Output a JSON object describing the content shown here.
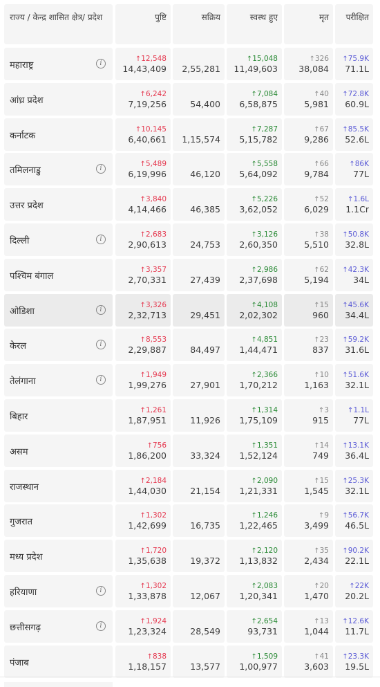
{
  "headers": {
    "state": "राज्य / केन्द्र शासित क्षेत्र/ प्रदेश",
    "confirmed": "पुष्टि",
    "active": "सक्रिय",
    "recovered": "स्वस्थ हुए",
    "deceased": "मृत",
    "tested": "परीक्षित"
  },
  "icons": {
    "arrow_up": "↑",
    "info": "i"
  },
  "colors": {
    "confirmed_delta": "#e53950",
    "recovered_delta": "#2a8a36",
    "deceased_delta": "#888888",
    "tested_delta": "#5a5ad6"
  },
  "rows": [
    {
      "state": "महाराष्ट्र",
      "info": true,
      "confirmed_delta": "12,548",
      "confirmed": "14,43,409",
      "active": "2,55,281",
      "recovered_delta": "15,048",
      "recovered": "11,49,603",
      "deceased_delta": "326",
      "deceased": "38,084",
      "tested_delta": "75.9K",
      "tested": "71.1L"
    },
    {
      "state": "आंध्र प्रदेश",
      "info": false,
      "confirmed_delta": "6,242",
      "confirmed": "7,19,256",
      "active": "54,400",
      "recovered_delta": "7,084",
      "recovered": "6,58,875",
      "deceased_delta": "40",
      "deceased": "5,981",
      "tested_delta": "72.8K",
      "tested": "60.9L"
    },
    {
      "state": "कर्नाटक",
      "info": false,
      "confirmed_delta": "10,145",
      "confirmed": "6,40,661",
      "active": "1,15,574",
      "recovered_delta": "7,287",
      "recovered": "5,15,782",
      "deceased_delta": "67",
      "deceased": "9,286",
      "tested_delta": "85.5K",
      "tested": "52.6L"
    },
    {
      "state": "तमिलनाडु",
      "info": true,
      "confirmed_delta": "5,489",
      "confirmed": "6,19,996",
      "active": "46,120",
      "recovered_delta": "5,558",
      "recovered": "5,64,092",
      "deceased_delta": "66",
      "deceased": "9,784",
      "tested_delta": "86K",
      "tested": "77L"
    },
    {
      "state": "उत्तर प्रदेश",
      "info": false,
      "confirmed_delta": "3,840",
      "confirmed": "4,14,466",
      "active": "46,385",
      "recovered_delta": "5,226",
      "recovered": "3,62,052",
      "deceased_delta": "52",
      "deceased": "6,029",
      "tested_delta": "1.6L",
      "tested": "1.1Cr"
    },
    {
      "state": "दिल्ली",
      "info": true,
      "confirmed_delta": "2,683",
      "confirmed": "2,90,613",
      "active": "24,753",
      "recovered_delta": "3,126",
      "recovered": "2,60,350",
      "deceased_delta": "38",
      "deceased": "5,510",
      "tested_delta": "50.8K",
      "tested": "32.8L"
    },
    {
      "state": "पश्चिम बंगाल",
      "info": false,
      "confirmed_delta": "3,357",
      "confirmed": "2,70,331",
      "active": "27,439",
      "recovered_delta": "2,986",
      "recovered": "2,37,698",
      "deceased_delta": "62",
      "deceased": "5,194",
      "tested_delta": "42.3K",
      "tested": "34L"
    },
    {
      "state": "ओडिशा",
      "info": true,
      "highlight": true,
      "confirmed_delta": "3,326",
      "confirmed": "2,32,713",
      "active": "29,451",
      "recovered_delta": "4,108",
      "recovered": "2,02,302",
      "deceased_delta": "15",
      "deceased": "960",
      "tested_delta": "45.6K",
      "tested": "34.4L"
    },
    {
      "state": "केरल",
      "info": true,
      "confirmed_delta": "8,553",
      "confirmed": "2,29,887",
      "active": "84,497",
      "recovered_delta": "4,851",
      "recovered": "1,44,471",
      "deceased_delta": "23",
      "deceased": "837",
      "tested_delta": "59.2K",
      "tested": "31.6L"
    },
    {
      "state": "तेलंगाना",
      "info": true,
      "confirmed_delta": "1,949",
      "confirmed": "1,99,276",
      "active": "27,901",
      "recovered_delta": "2,366",
      "recovered": "1,70,212",
      "deceased_delta": "10",
      "deceased": "1,163",
      "tested_delta": "51.6K",
      "tested": "32.1L"
    },
    {
      "state": "बिहार",
      "info": false,
      "confirmed_delta": "1,261",
      "confirmed": "1,87,951",
      "active": "11,926",
      "recovered_delta": "1,314",
      "recovered": "1,75,109",
      "deceased_delta": "3",
      "deceased": "915",
      "tested_delta": "1.1L",
      "tested": "77L"
    },
    {
      "state": "असम",
      "info": false,
      "confirmed_delta": "756",
      "confirmed": "1,86,200",
      "active": "33,324",
      "recovered_delta": "1,351",
      "recovered": "1,52,124",
      "deceased_delta": "14",
      "deceased": "749",
      "tested_delta": "13.1K",
      "tested": "36.4L"
    },
    {
      "state": "राजस्थान",
      "info": false,
      "confirmed_delta": "2,184",
      "confirmed": "1,44,030",
      "active": "21,154",
      "recovered_delta": "2,090",
      "recovered": "1,21,331",
      "deceased_delta": "15",
      "deceased": "1,545",
      "tested_delta": "25.3K",
      "tested": "32.1L"
    },
    {
      "state": "गुजरात",
      "info": false,
      "confirmed_delta": "1,302",
      "confirmed": "1,42,699",
      "active": "16,735",
      "recovered_delta": "1,246",
      "recovered": "1,22,465",
      "deceased_delta": "9",
      "deceased": "3,499",
      "tested_delta": "56.7K",
      "tested": "46.5L"
    },
    {
      "state": "मध्य प्रदेश",
      "info": false,
      "confirmed_delta": "1,720",
      "confirmed": "1,35,638",
      "active": "19,372",
      "recovered_delta": "2,120",
      "recovered": "1,13,832",
      "deceased_delta": "35",
      "deceased": "2,434",
      "tested_delta": "90.2K",
      "tested": "22.1L"
    },
    {
      "state": "हरियाणा",
      "info": true,
      "confirmed_delta": "1,302",
      "confirmed": "1,33,878",
      "active": "12,067",
      "recovered_delta": "2,083",
      "recovered": "1,20,341",
      "deceased_delta": "20",
      "deceased": "1,470",
      "tested_delta": "22K",
      "tested": "20.2L"
    },
    {
      "state": "छत्तीसगढ़",
      "info": true,
      "confirmed_delta": "1,924",
      "confirmed": "1,23,324",
      "active": "28,549",
      "recovered_delta": "2,654",
      "recovered": "93,731",
      "deceased_delta": "13",
      "deceased": "1,044",
      "tested_delta": "12.6K",
      "tested": "11.7L"
    },
    {
      "state": "पंजाब",
      "info": false,
      "confirmed_delta": "838",
      "confirmed": "1,18,157",
      "active": "13,577",
      "recovered_delta": "1,509",
      "recovered": "1,00,977",
      "deceased_delta": "41",
      "deceased": "3,603",
      "tested_delta": "23.3K",
      "tested": "19.5L"
    }
  ]
}
